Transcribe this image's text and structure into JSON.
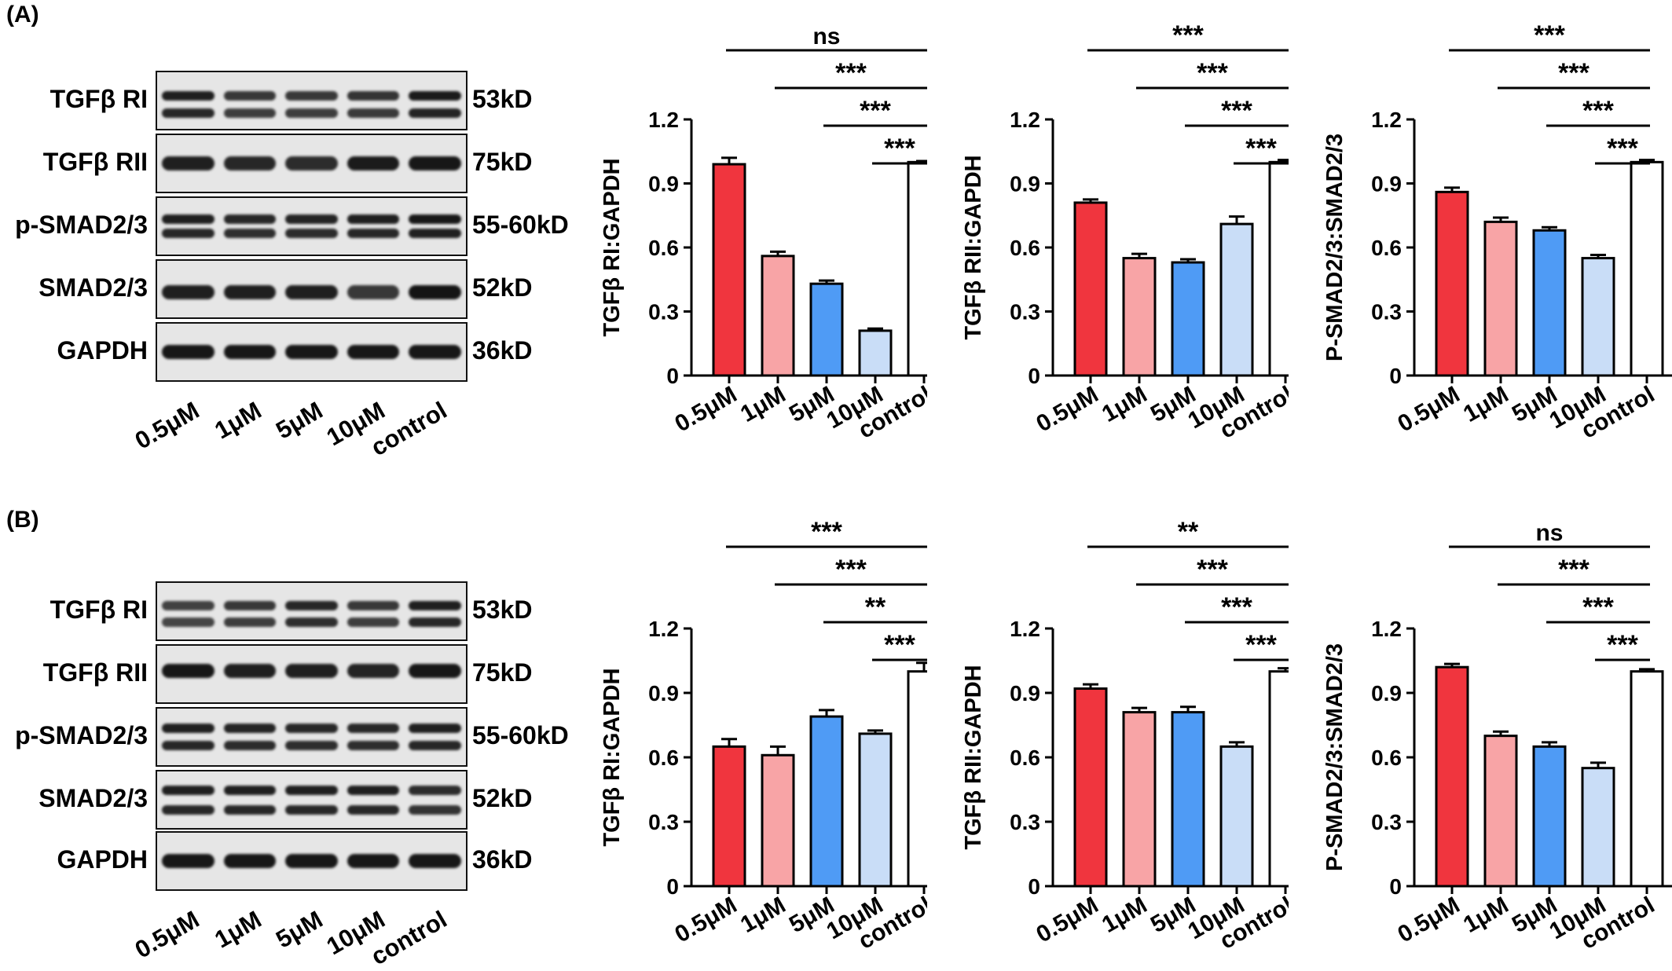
{
  "panels": [
    {
      "label": "(A)",
      "blots": [
        {
          "name": "TGFβ RI",
          "kd": "53kD"
        },
        {
          "name": "TGFβ RII",
          "kd": "75kD"
        },
        {
          "name": "p-SMAD2/3",
          "kd": "55-60kD"
        },
        {
          "name": "SMAD2/3",
          "kd": "52kD"
        },
        {
          "name": "GAPDH",
          "kd": "36kD"
        }
      ],
      "lanes": [
        "0.5μM",
        "1μM",
        "5μM",
        "10μM",
        "control"
      ]
    },
    {
      "label": "(B)",
      "blots": [
        {
          "name": "TGFβ RI",
          "kd": "53kD"
        },
        {
          "name": "TGFβ RII",
          "kd": "75kD"
        },
        {
          "name": "p-SMAD2/3",
          "kd": "55-60kD"
        },
        {
          "name": "SMAD2/3",
          "kd": "52kD"
        },
        {
          "name": "GAPDH",
          "kd": "36kD"
        }
      ],
      "lanes": [
        "0.5μM",
        "1μM",
        "5μM",
        "10μM",
        "control"
      ]
    }
  ],
  "colors": {
    "0.5μM": "#f0353e",
    "1μM": "#f8a4a6",
    "5μM": "#4f9bf5",
    "10μM": "#c9ddf7",
    "control": "#ffffff"
  },
  "chart_data": [
    {
      "type": "bar",
      "ylabel": "TGFβ RI:GAPDH",
      "categories": [
        "0.5μM",
        "1μM",
        "5μM",
        "10μM",
        "control"
      ],
      "values": [
        0.99,
        0.56,
        0.43,
        0.21,
        1.0
      ],
      "errors": [
        0.03,
        0.02,
        0.015,
        0.01,
        0.005
      ],
      "ylim": [
        0,
        1.2
      ],
      "yticks": [
        "0",
        "0.3",
        "0.6",
        "0.9",
        "1.2"
      ],
      "significance": [
        "ns",
        "***",
        "***",
        "***"
      ]
    },
    {
      "type": "bar",
      "ylabel": "TGFβ RII:GAPDH",
      "categories": [
        "0.5μM",
        "1μM",
        "5μM",
        "10μM",
        "control"
      ],
      "values": [
        0.81,
        0.55,
        0.53,
        0.71,
        1.0
      ],
      "errors": [
        0.015,
        0.02,
        0.015,
        0.035,
        0.01
      ],
      "ylim": [
        0,
        1.2
      ],
      "yticks": [
        "0",
        "0.3",
        "0.6",
        "0.9",
        "1.2"
      ],
      "significance": [
        "***",
        "***",
        "***",
        "***"
      ]
    },
    {
      "type": "bar",
      "ylabel": "P-SMAD2/3:SMAD2/3",
      "categories": [
        "0.5μM",
        "1μM",
        "5μM",
        "10μM",
        "control"
      ],
      "values": [
        0.86,
        0.72,
        0.68,
        0.55,
        1.0
      ],
      "errors": [
        0.02,
        0.02,
        0.015,
        0.015,
        0.01
      ],
      "ylim": [
        0,
        1.2
      ],
      "yticks": [
        "0",
        "0.3",
        "0.6",
        "0.9",
        "1.2"
      ],
      "significance": [
        "***",
        "***",
        "***",
        "***"
      ]
    },
    {
      "type": "bar",
      "ylabel": "TGFβ RI:GAPDH",
      "categories": [
        "0.5μM",
        "1μM",
        "5μM",
        "10μM",
        "control"
      ],
      "values": [
        0.65,
        0.61,
        0.79,
        0.71,
        1.0
      ],
      "errors": [
        0.035,
        0.04,
        0.03,
        0.015,
        0.04
      ],
      "ylim": [
        0,
        1.2
      ],
      "yticks": [
        "0",
        "0.3",
        "0.6",
        "0.9",
        "1.2"
      ],
      "significance": [
        "***",
        "***",
        "**",
        "***"
      ]
    },
    {
      "type": "bar",
      "ylabel": "TGFβ RII:GAPDH",
      "categories": [
        "0.5μM",
        "1μM",
        "5μM",
        "10μM",
        "control"
      ],
      "values": [
        0.92,
        0.81,
        0.81,
        0.65,
        1.0
      ],
      "errors": [
        0.02,
        0.02,
        0.025,
        0.02,
        0.015
      ],
      "ylim": [
        0,
        1.2
      ],
      "yticks": [
        "0",
        "0.3",
        "0.6",
        "0.9",
        "1.2"
      ],
      "significance": [
        "**",
        "***",
        "***",
        "***"
      ]
    },
    {
      "type": "bar",
      "ylabel": "P-SMAD2/3:SMAD2/3",
      "categories": [
        "0.5μM",
        "1μM",
        "5μM",
        "10μM",
        "control"
      ],
      "values": [
        1.02,
        0.7,
        0.65,
        0.55,
        1.0
      ],
      "errors": [
        0.015,
        0.02,
        0.02,
        0.025,
        0.01
      ],
      "ylim": [
        0,
        1.2
      ],
      "yticks": [
        "0",
        "0.3",
        "0.6",
        "0.9",
        "1.2"
      ],
      "significance": [
        "ns",
        "***",
        "***",
        "***"
      ]
    }
  ]
}
